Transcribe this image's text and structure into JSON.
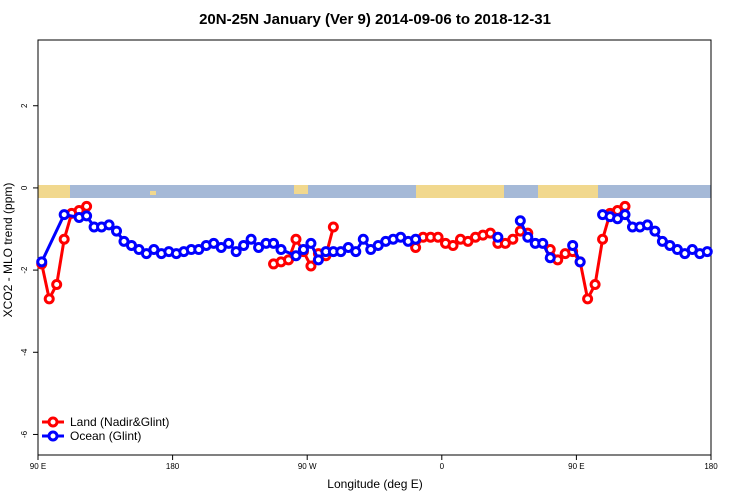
{
  "chart_data": {
    "type": "line",
    "title": "20N-25N January (Ver 9)   2014-09-06 to 2018-12-31",
    "x_label": "Longitude (deg E)",
    "y_label": "XCO2 - MLO trend (ppm)",
    "xlim": [
      90,
      540
    ],
    "ylim": [
      -6.5,
      3.6
    ],
    "xticks": [
      {
        "value": 90,
        "label": "90 E"
      },
      {
        "value": 180,
        "label": "180"
      },
      {
        "value": 270,
        "label": "90 W"
      },
      {
        "value": 360,
        "label": "0"
      },
      {
        "value": 450,
        "label": "90 E"
      },
      {
        "value": 540,
        "label": "180"
      }
    ],
    "yticks": [
      -6,
      -4,
      -2,
      0,
      2
    ],
    "legend": "bottomleft",
    "series": [
      {
        "name": "Land (Nadir&Glint)",
        "color": "#ff0000",
        "x": [
          92.5,
          97.5,
          102.5,
          107.5,
          112.5,
          117.5,
          122.5,
          null,
          247.5,
          252.5,
          257.5,
          262.5,
          267.5,
          272.5,
          277.5,
          282.5,
          287.5,
          null,
          342.5,
          347.5,
          352.5,
          357.5,
          362.5,
          367.5,
          372.5,
          377.5,
          382.5,
          387.5,
          392.5,
          397.5,
          402.5,
          407.5,
          412.5,
          417.5,
          null,
          432.5,
          437.5,
          442.5,
          447.5,
          452.5,
          457.5,
          462.5,
          467.5,
          472.5,
          477.5,
          482.5
        ],
        "values": [
          -1.85,
          -2.7,
          -2.35,
          -1.25,
          -0.62,
          -0.55,
          -0.45,
          null,
          -1.85,
          -1.8,
          -1.75,
          -1.25,
          -1.55,
          -1.9,
          -1.6,
          -1.65,
          -0.95,
          null,
          -1.45,
          -1.2,
          -1.2,
          -1.2,
          -1.35,
          -1.4,
          -1.25,
          -1.3,
          -1.2,
          -1.15,
          -1.1,
          -1.35,
          -1.35,
          -1.25,
          -1.05,
          -1.1,
          null,
          -1.5,
          -1.75,
          -1.6,
          -1.55,
          -1.8,
          -2.7,
          -2.35,
          -1.25,
          -0.62,
          -0.55,
          -0.45
        ]
      },
      {
        "name": "Ocean (Glint)",
        "color": "#0000ff",
        "x": [
          92.5,
          107.5,
          117.5,
          122.5,
          127.5,
          132.5,
          137.5,
          142.5,
          147.5,
          152.5,
          157.5,
          162.5,
          167.5,
          172.5,
          177.5,
          182.5,
          187.5,
          192.5,
          197.5,
          202.5,
          207.5,
          212.5,
          217.5,
          222.5,
          227.5,
          232.5,
          237.5,
          242.5,
          247.5,
          252.5,
          262.5,
          267.5,
          272.5,
          277.5,
          282.5,
          287.5,
          292.5,
          297.5,
          302.5,
          307.5,
          312.5,
          317.5,
          322.5,
          327.5,
          332.5,
          337.5,
          342.5,
          null,
          397.5,
          null,
          412.5,
          417.5,
          422.5,
          427.5,
          432.5,
          null,
          447.5,
          452.5,
          null,
          467.5,
          472.5,
          477.5,
          482.5,
          487.5,
          492.5,
          497.5,
          502.5,
          507.5,
          512.5,
          517.5,
          522.5,
          527.5,
          532.5,
          537.5
        ],
        "values": [
          -1.8,
          -0.65,
          -0.72,
          -0.68,
          -0.95,
          -0.95,
          -0.9,
          -1.05,
          -1.3,
          -1.4,
          -1.5,
          -1.6,
          -1.5,
          -1.6,
          -1.55,
          -1.6,
          -1.55,
          -1.5,
          -1.5,
          -1.4,
          -1.35,
          -1.45,
          -1.35,
          -1.55,
          -1.4,
          -1.25,
          -1.45,
          -1.35,
          -1.35,
          -1.5,
          -1.65,
          -1.5,
          -1.35,
          -1.75,
          -1.55,
          -1.55,
          -1.55,
          -1.45,
          -1.55,
          -1.25,
          -1.5,
          -1.4,
          -1.3,
          -1.25,
          -1.2,
          -1.3,
          -1.25,
          null,
          -1.2,
          null,
          -0.8,
          -1.2,
          -1.35,
          -1.35,
          -1.7,
          null,
          -1.4,
          -1.8,
          null,
          -0.65,
          -0.7,
          -0.75,
          -0.65,
          -0.95,
          -0.95,
          -0.9,
          -1.05,
          -1.3,
          -1.4,
          -1.5,
          -1.6,
          -1.5,
          -1.6,
          -1.55
        ]
      }
    ]
  }
}
